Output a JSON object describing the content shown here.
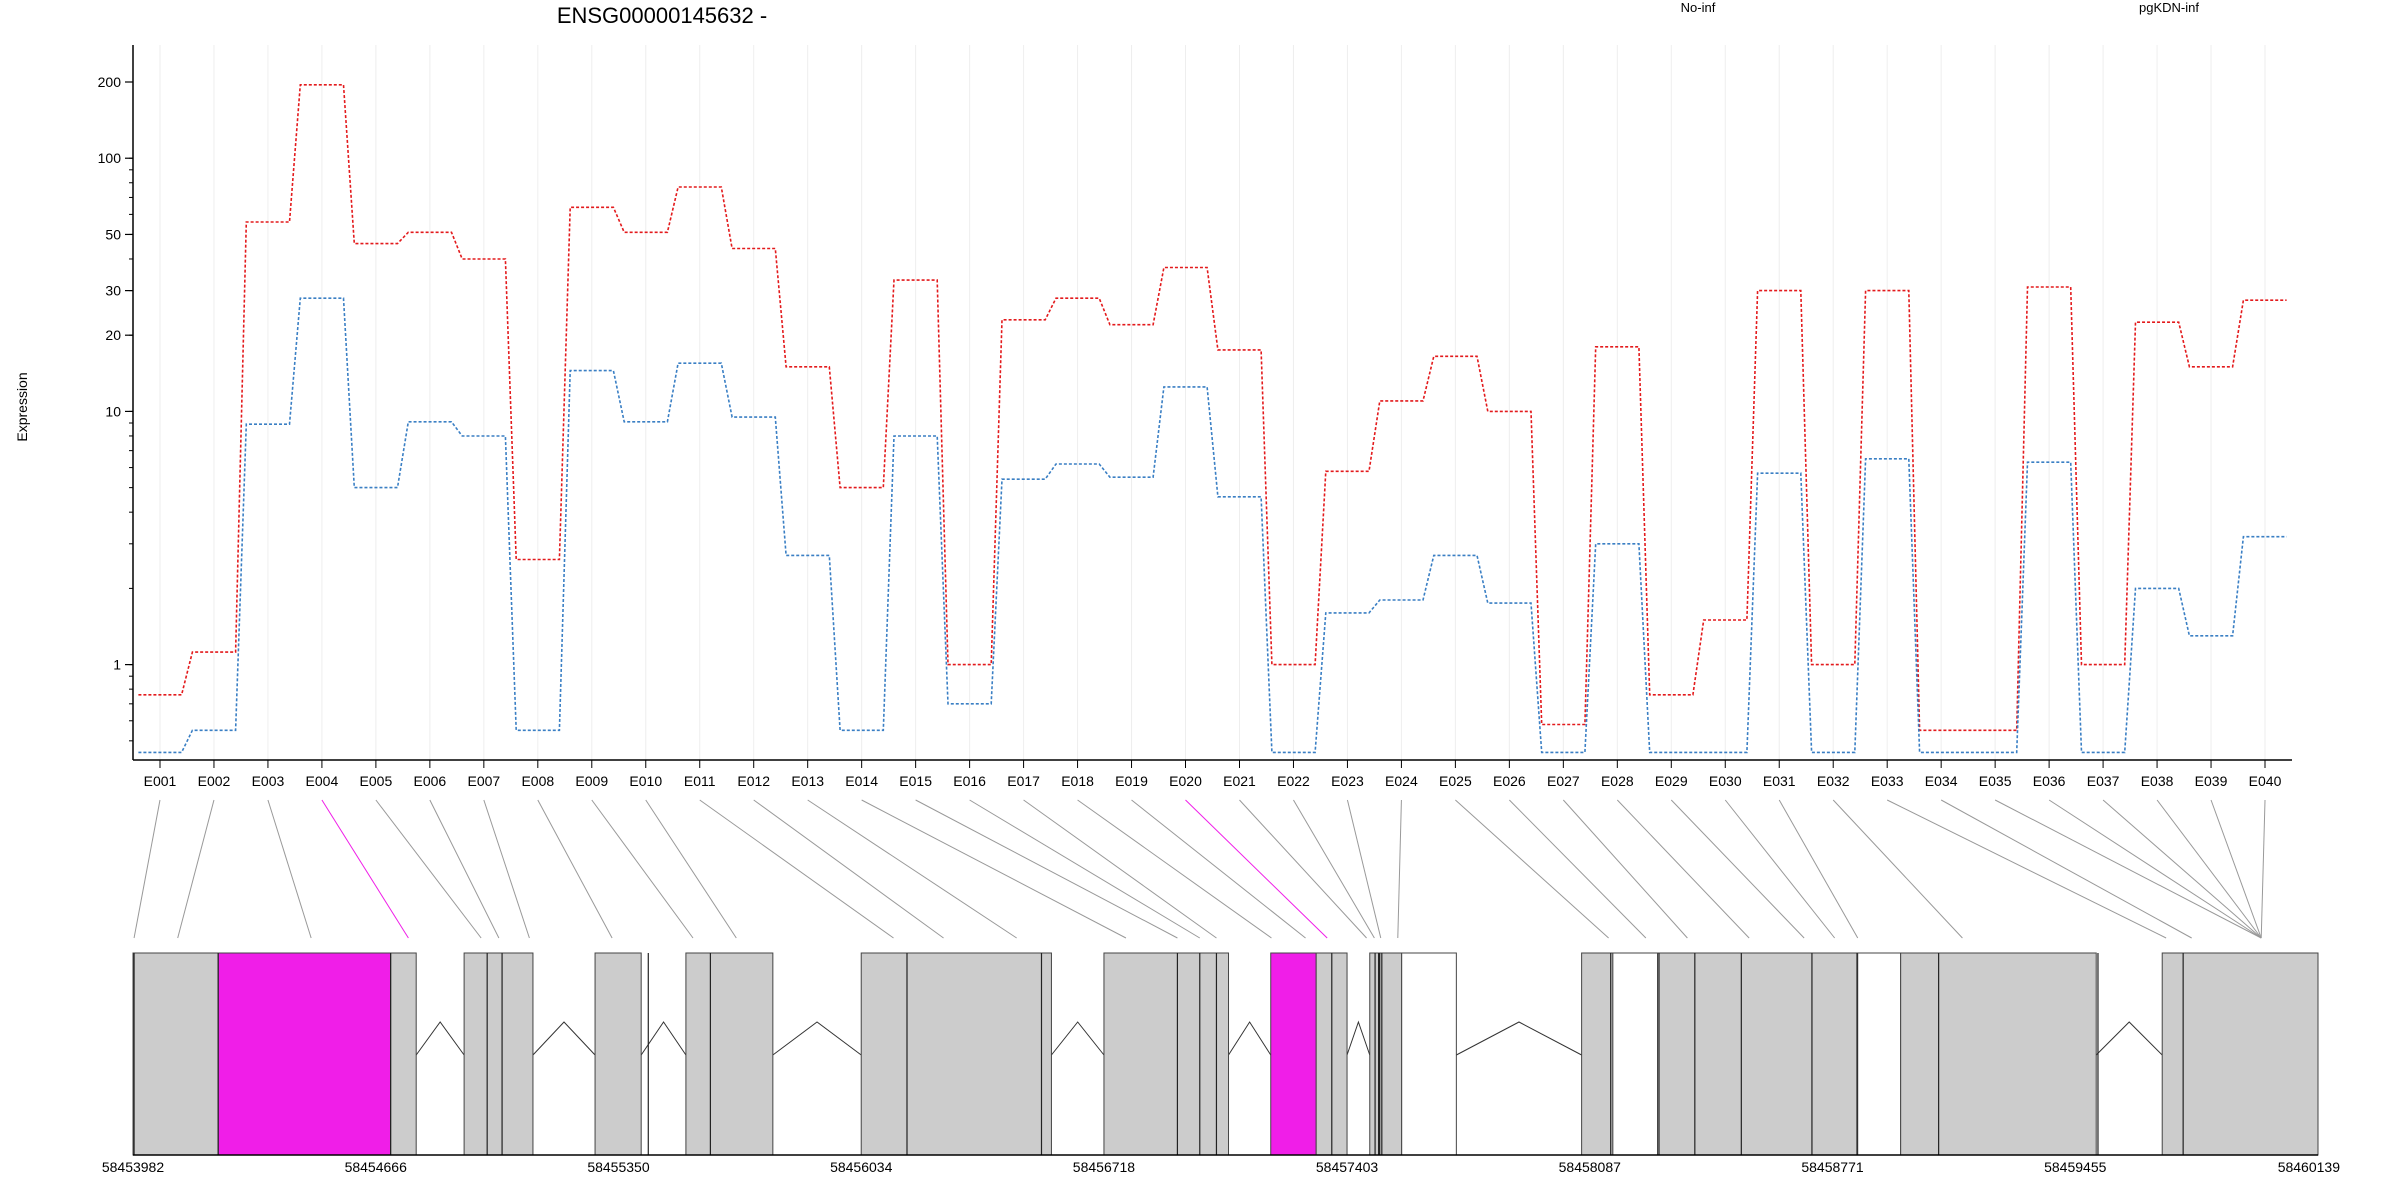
{
  "title": "ENSG00000145632 -",
  "ylabel": "Expression",
  "colors": {
    "no_inf": "#e31a1c",
    "pgkdn_inf": "#3a7fc4",
    "highlight": "#f01ee8",
    "exon_fill": "#cccccc"
  },
  "legend": [
    {
      "label": "No-inf",
      "color": "#e31a1c"
    },
    {
      "label": "pgKDN-inf",
      "color": "#3a7fc4"
    }
  ],
  "chart_data": {
    "type": "line",
    "yscale": "log",
    "ylim": [
      0.42,
      280
    ],
    "yticks": [
      1,
      10,
      20,
      30,
      50,
      100,
      200
    ],
    "ylabel": "Expression",
    "categories": [
      "E001",
      "E002",
      "E003",
      "E004",
      "E005",
      "E006",
      "E007",
      "E008",
      "E009",
      "E010",
      "E011",
      "E012",
      "E013",
      "E014",
      "E015",
      "E016",
      "E017",
      "E018",
      "E019",
      "E020",
      "E021",
      "E022",
      "E023",
      "E024",
      "E025",
      "E026",
      "E027",
      "E028",
      "E029",
      "E030",
      "E031",
      "E032",
      "E033",
      "E034",
      "E035",
      "E036",
      "E037",
      "E038",
      "E039",
      "E040"
    ],
    "highlight_exon": "E004",
    "highlight_exon_2": "E020",
    "series": [
      {
        "name": "No-inf",
        "values": [
          0.76,
          1.12,
          56,
          195,
          46,
          51,
          40,
          2.6,
          64,
          51,
          77,
          44,
          15,
          5.0,
          33,
          1.0,
          23,
          28,
          22,
          37,
          17.5,
          1.0,
          5.8,
          11,
          16.5,
          10,
          0.58,
          18,
          0.76,
          1.5,
          30,
          1.0,
          30,
          0.55,
          0.55,
          31,
          1.0,
          22.5,
          15,
          27.5
        ]
      },
      {
        "name": "pgKDN-inf",
        "values": [
          0.45,
          0.55,
          8.9,
          28,
          5.0,
          9.1,
          8.0,
          0.55,
          14.5,
          9.1,
          15.5,
          9.5,
          2.7,
          0.55,
          8.0,
          0.7,
          5.4,
          6.2,
          5.5,
          12.5,
          4.6,
          0.45,
          1.6,
          1.8,
          2.7,
          1.75,
          0.45,
          3.0,
          0.45,
          0.45,
          5.7,
          0.45,
          6.5,
          0.45,
          0.45,
          6.3,
          0.45,
          2.0,
          1.3,
          3.2
        ]
      }
    ],
    "genome_axis": {
      "range": [
        58453982,
        58460139
      ],
      "ticks": [
        58453982,
        58454666,
        58455350,
        58456034,
        58456718,
        58457403,
        58458087,
        58458771,
        58459455,
        58460139
      ]
    },
    "gene_blocks": [
      {
        "start": 58453982,
        "end": 58454222,
        "fill": "grey"
      },
      {
        "start": 58454222,
        "end": 58454708,
        "fill": "highlight"
      },
      {
        "start": 58454708,
        "end": 58454780,
        "fill": "grey"
      },
      {
        "start": 58454915,
        "end": 58455109,
        "fill": "grey"
      },
      {
        "start": 58455284,
        "end": 58455414,
        "fill": "grey"
      },
      {
        "start": 58455540,
        "end": 58455785,
        "fill": "grey"
      },
      {
        "start": 58456034,
        "end": 58456570,
        "fill": "grey"
      },
      {
        "start": 58456718,
        "end": 58457069,
        "fill": "grey"
      },
      {
        "start": 58457188,
        "end": 58457316,
        "fill": "highlight"
      },
      {
        "start": 58457316,
        "end": 58457403,
        "fill": "grey"
      },
      {
        "start": 58457467,
        "end": 58457557,
        "fill": "grey"
      },
      {
        "start": 58457557,
        "end": 58457711,
        "fill": "white"
      },
      {
        "start": 58458064,
        "end": 58458152,
        "fill": "grey"
      },
      {
        "start": 58458152,
        "end": 58458278,
        "fill": "white"
      },
      {
        "start": 58458278,
        "end": 58458842,
        "fill": "grey"
      },
      {
        "start": 58458842,
        "end": 58458963,
        "fill": "white"
      },
      {
        "start": 58458963,
        "end": 58459514,
        "fill": "grey"
      },
      {
        "start": 58459700,
        "end": 58460139,
        "fill": "grey"
      }
    ],
    "gene_dividers": [
      58453985,
      58454222,
      58454708,
      58454980,
      58455022,
      58455434,
      58455609,
      58456163,
      58456542,
      58456925,
      58456988,
      58457035,
      58457360,
      58457482,
      58457492,
      58457493,
      58457495,
      58457501,
      58458146,
      58458282,
      58458383,
      58458514,
      58458713,
      58458840,
      58459070,
      58459519,
      59459757,
      58459759
    ],
    "introns": [
      [
        58454780,
        58454915
      ],
      [
        58455109,
        58455284
      ],
      [
        58455414,
        58455540
      ],
      [
        58455785,
        58456034
      ],
      [
        58456570,
        58456718
      ],
      [
        58457069,
        58457188
      ],
      [
        58457403,
        58457467
      ],
      [
        58457711,
        58458064
      ],
      [
        58459514,
        58459700
      ]
    ],
    "connector_targets": [
      58453985,
      58454108,
      58454484,
      58454758,
      58454963,
      58455013,
      58455099,
      58455332,
      58455560,
      58455682,
      58456125,
      58456266,
      58456472,
      58456780,
      58456925,
      58456988,
      58457035,
      58457190,
      58457286,
      58457347,
      58457458,
      58457480,
      58457498,
      58457546,
      58458140,
      58458245,
      58458362,
      58458536,
      58458691,
      58458777,
      58458842,
      58459137,
      58459711,
      58459783,
      58459979,
      58459979,
      58459979,
      58459979,
      58459979,
      58459979
    ]
  }
}
